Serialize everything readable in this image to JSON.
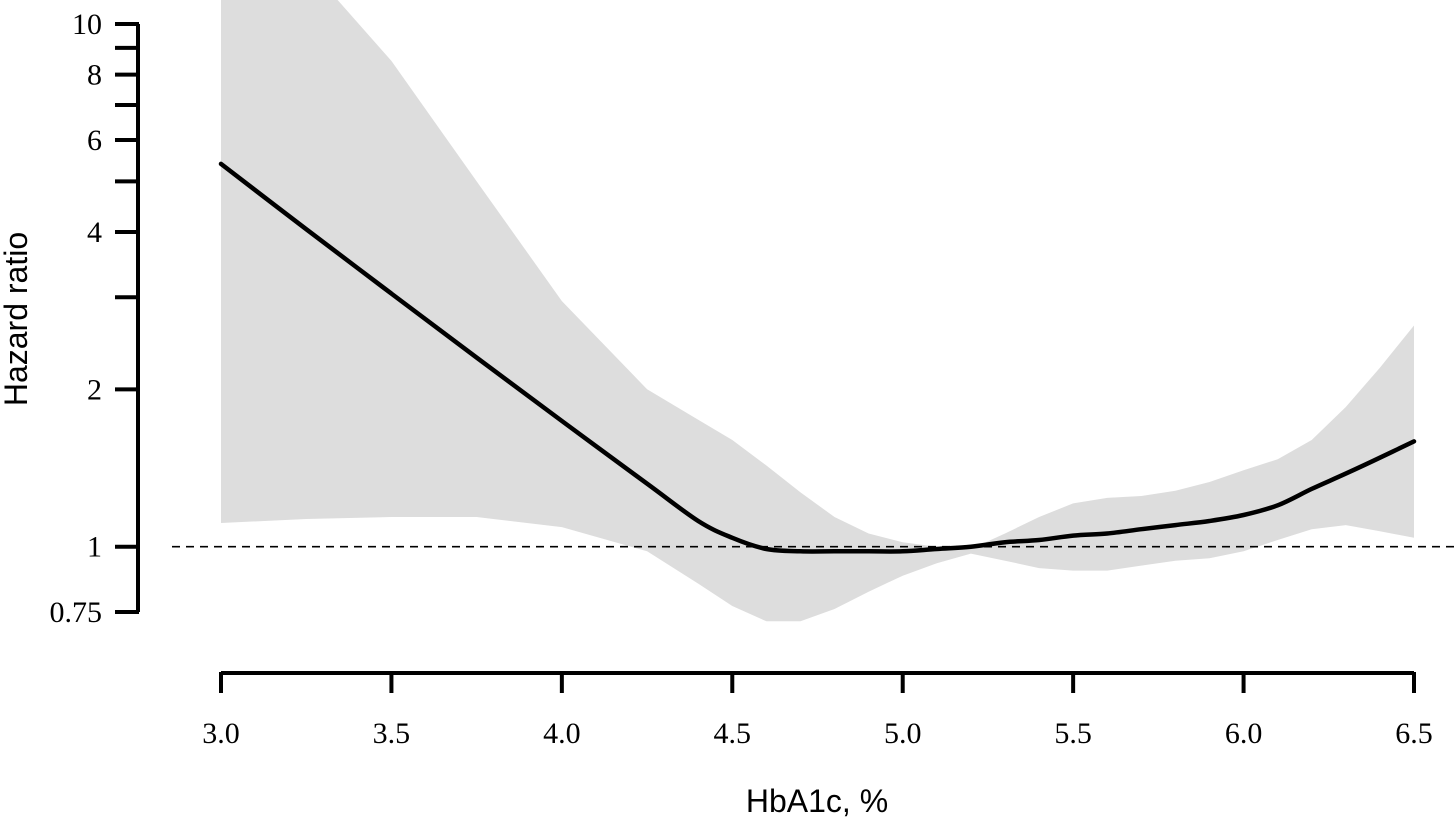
{
  "chart_data": {
    "type": "line",
    "title": "",
    "xlabel": "HbA1c, %",
    "ylabel": "Hazard ratio",
    "x_scale": "linear",
    "y_scale": "log",
    "xlim": [
      3.0,
      6.5
    ],
    "ylim": [
      0.75,
      10
    ],
    "x_ticks": [
      {
        "value": 3.0,
        "label": "3.0"
      },
      {
        "value": 3.5,
        "label": "3.5"
      },
      {
        "value": 4.0,
        "label": "4.0"
      },
      {
        "value": 4.5,
        "label": "4.5"
      },
      {
        "value": 5.0,
        "label": "5.0"
      },
      {
        "value": 5.5,
        "label": "5.5"
      },
      {
        "value": 6.0,
        "label": "6.0"
      },
      {
        "value": 6.5,
        "label": "6.5"
      }
    ],
    "y_ticks": [
      {
        "value": 0.75,
        "label": "0.75"
      },
      {
        "value": 1,
        "label": "1"
      },
      {
        "value": 2,
        "label": "2"
      },
      {
        "value": 3,
        "label": ""
      },
      {
        "value": 4,
        "label": "4"
      },
      {
        "value": 5,
        "label": ""
      },
      {
        "value": 6,
        "label": "6"
      },
      {
        "value": 7,
        "label": ""
      },
      {
        "value": 8,
        "label": "8"
      },
      {
        "value": 9,
        "label": ""
      },
      {
        "value": 10,
        "label": "10"
      }
    ],
    "reference_line": {
      "y": 1,
      "style": "dashed"
    },
    "grid": false,
    "legend": "none",
    "colors": {
      "line": "#000000",
      "band": "#dddddd",
      "reference": "#000000"
    },
    "series": [
      {
        "type": "line",
        "x": [
          3.0,
          3.25,
          3.5,
          3.75,
          4.0,
          4.25,
          4.4,
          4.5,
          4.6,
          4.7,
          4.8,
          4.9,
          5.0,
          5.1,
          5.2,
          5.3,
          5.4,
          5.5,
          5.6,
          5.7,
          5.8,
          5.9,
          6.0,
          6.1,
          6.2,
          6.3,
          6.4,
          6.5
        ],
        "y": [
          5.4,
          4.05,
          3.05,
          2.3,
          1.74,
          1.32,
          1.12,
          1.04,
          0.99,
          0.98,
          0.98,
          0.98,
          0.98,
          0.99,
          1.0,
          1.02,
          1.03,
          1.05,
          1.06,
          1.08,
          1.1,
          1.12,
          1.15,
          1.2,
          1.29,
          1.38,
          1.48,
          1.59
        ]
      },
      {
        "type": "area",
        "x": [
          3.0,
          3.25,
          3.5,
          3.75,
          4.0,
          4.25,
          4.4,
          4.5,
          4.6,
          4.7,
          4.8,
          4.9,
          5.0,
          5.1,
          5.2,
          5.3,
          5.4,
          5.5,
          5.6,
          5.7,
          5.8,
          5.9,
          6.0,
          6.1,
          6.2,
          6.3,
          6.4,
          6.5
        ],
        "y_upper": [
          15,
          13,
          8.5,
          5.0,
          2.95,
          2.0,
          1.75,
          1.6,
          1.43,
          1.27,
          1.14,
          1.06,
          1.02,
          1.0,
          0.99,
          1.06,
          1.14,
          1.21,
          1.24,
          1.25,
          1.28,
          1.33,
          1.4,
          1.47,
          1.6,
          1.85,
          2.2,
          2.65
        ],
        "y_lower": [
          1.11,
          1.13,
          1.14,
          1.14,
          1.09,
          0.98,
          0.85,
          0.77,
          0.72,
          0.72,
          0.76,
          0.82,
          0.88,
          0.93,
          0.97,
          0.94,
          0.91,
          0.9,
          0.9,
          0.92,
          0.94,
          0.95,
          0.98,
          1.03,
          1.08,
          1.1,
          1.07,
          1.04
        ]
      }
    ]
  }
}
